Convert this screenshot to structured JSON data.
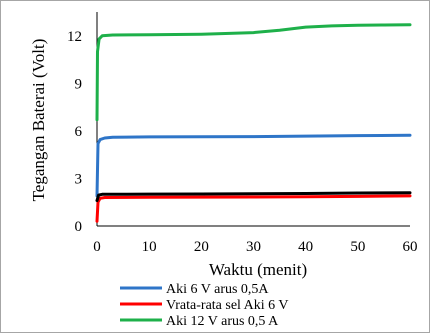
{
  "chart_data": {
    "type": "line",
    "title": "",
    "xlabel": "Waktu (menit)",
    "ylabel": "Tegangan Baterai (Volt)",
    "xlim": [
      0,
      60
    ],
    "ylim": [
      0,
      13.5
    ],
    "xticks": [
      "0",
      "10",
      "20",
      "30",
      "40",
      "50",
      "60"
    ],
    "yticks": [
      "0",
      "3",
      "6",
      "9",
      "12"
    ],
    "grid": false,
    "legend_position": "bottom",
    "series": [
      {
        "name": "Aki 6 V arus 0,5A",
        "color": "#2e75c8",
        "points": [
          [
            0,
            1.9
          ],
          [
            0.2,
            5.2
          ],
          [
            0.6,
            5.45
          ],
          [
            1.5,
            5.55
          ],
          [
            3,
            5.6
          ],
          [
            10,
            5.62
          ],
          [
            20,
            5.63
          ],
          [
            30,
            5.64
          ],
          [
            40,
            5.67
          ],
          [
            50,
            5.7
          ],
          [
            60,
            5.72
          ]
        ]
      },
      {
        "name": "Vrata-rata sel Aki 6 V",
        "color": "#ff0000",
        "points": [
          [
            0,
            0.3
          ],
          [
            0.2,
            1.5
          ],
          [
            0.6,
            1.75
          ],
          [
            1.5,
            1.8
          ],
          [
            10,
            1.81
          ],
          [
            20,
            1.82
          ],
          [
            30,
            1.83
          ],
          [
            40,
            1.85
          ],
          [
            50,
            1.87
          ],
          [
            60,
            1.9
          ]
        ]
      },
      {
        "name": "",
        "color": "#000000",
        "points": [
          [
            0,
            1.6
          ],
          [
            0.3,
            1.95
          ],
          [
            1,
            2.0
          ],
          [
            10,
            2.01
          ],
          [
            20,
            2.02
          ],
          [
            30,
            2.03
          ],
          [
            40,
            2.05
          ],
          [
            50,
            2.08
          ],
          [
            60,
            2.1
          ]
        ]
      },
      {
        "name": "Aki 12 V arus 0,5 A",
        "color": "#1eb04a",
        "points": [
          [
            0,
            6.7
          ],
          [
            0.1,
            11.0
          ],
          [
            0.4,
            11.8
          ],
          [
            1,
            12.0
          ],
          [
            3,
            12.05
          ],
          [
            10,
            12.07
          ],
          [
            20,
            12.1
          ],
          [
            30,
            12.2
          ],
          [
            35,
            12.35
          ],
          [
            40,
            12.55
          ],
          [
            45,
            12.62
          ],
          [
            50,
            12.66
          ],
          [
            55,
            12.68
          ],
          [
            60,
            12.7
          ]
        ]
      }
    ]
  }
}
